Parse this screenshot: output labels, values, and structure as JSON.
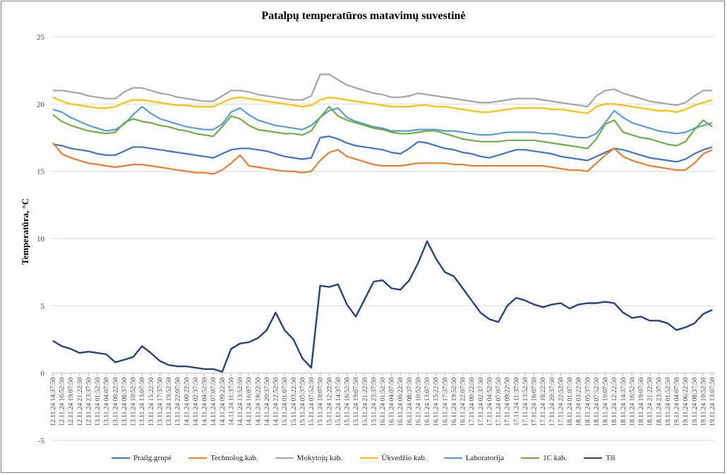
{
  "chart_data": {
    "type": "line",
    "title": "Patalpų temperatūros matavimų suvestinė",
    "ylabel": "Temperatūra, °C",
    "xlabel": "",
    "ylim": [
      -5,
      25
    ],
    "yticks": [
      -5,
      0,
      5,
      10,
      15,
      20,
      25
    ],
    "grid": true,
    "legend_position": "bottom",
    "x": [
      "12.11.24 14:37:50",
      "12.11.24 16:52:50",
      "12.11.24 19:07:50",
      "12.11.24 21:22:50",
      "12.11.24 23:37:50",
      "13.11.24 01:52:50",
      "13.11.24 04:07:50",
      "13.11.24 06:22:50",
      "13.11.24 08:37:50",
      "13.11.24 10:52:50",
      "13.11.24 13:07:50",
      "13.11.24 15:22:50",
      "13.11.24 17:37:50",
      "13.11.24 19:52:50",
      "13.11.24 22:07:50",
      "14.11.24 00:22:50",
      "14.11.24 02:37:50",
      "14.11.24 04:52:50",
      "14.11.24 07:07:50",
      "14.11.24 09:22:50",
      "14.11.24 11:37:50",
      "14.11.24 13:52:50",
      "14.11.24 16:07:50",
      "14.11.24 18:22:50",
      "14.11.24 20:37:50",
      "14.11.24 22:52:50",
      "15.11.24 01:07:50",
      "15.11.24 03:22:50",
      "15.11.24 05:37:50",
      "15.11.24 07:52:50",
      "15.11.24 10:07:50",
      "15.11.24 12:22:50",
      "15.11.24 14:37:50",
      "15.11.24 16:52:50",
      "15.11.24 19:07:50",
      "15.11.24 21:22:50",
      "15.11.24 23:37:50",
      "16.11.24 01:52:50",
      "16.11.24 04:07:50",
      "16.11.24 06:22:50",
      "16.11.24 08:37:50",
      "16.11.24 10:52:50",
      "16.11.24 13:07:50",
      "16.11.24 15:22:50",
      "16.11.24 17:37:50",
      "16.11.24 19:52:50",
      "16.11.24 22:07:50",
      "17.11.24 00:22:50",
      "17.11.24 02:37:50",
      "17.11.24 04:52:50",
      "17.11.24 07:07:50",
      "17.11.24 09:22:50",
      "17.11.24 11:37:50",
      "17.11.24 13:52:50",
      "17.11.24 16:07:50",
      "17.11.24 18:22:50",
      "17.11.24 20:37:50",
      "17.11.24 22:52:50",
      "18.11.24 01:07:50",
      "18.11.24 03:22:50",
      "18.11.24 05:37:50",
      "18.11.24 07:52:50",
      "18.11.24 10:07:50",
      "18.11.24 12:22:50",
      "18.11.24 14:37:50",
      "18.11.24 16:52:50",
      "18.11.24 19:07:50",
      "18.11.24 21:22:50",
      "18.11.24 23:37:50",
      "19.11.24 01:52:50",
      "19.11.24 04:07:50",
      "19.11.24 06:22:50",
      "19.11.24 08:37:50",
      "19.11.24 10:52:50",
      "19.11.24 13:07:50"
    ],
    "series": [
      {
        "name": "Prailg.grupė",
        "color": "#4472c4",
        "values": [
          17.0,
          16.9,
          16.7,
          16.6,
          16.5,
          16.3,
          16.2,
          16.2,
          16.5,
          16.8,
          16.8,
          16.7,
          16.6,
          16.5,
          16.4,
          16.3,
          16.2,
          16.1,
          16.0,
          16.3,
          16.6,
          16.7,
          16.7,
          16.6,
          16.5,
          16.3,
          16.1,
          16.0,
          15.9,
          16.0,
          17.5,
          17.6,
          17.4,
          17.1,
          16.9,
          16.8,
          16.7,
          16.6,
          16.4,
          16.3,
          16.7,
          17.2,
          17.1,
          16.9,
          16.7,
          16.6,
          16.4,
          16.3,
          16.1,
          16.0,
          16.2,
          16.4,
          16.6,
          16.6,
          16.5,
          16.4,
          16.3,
          16.1,
          16.0,
          15.9,
          15.8,
          16.1,
          16.4,
          16.7,
          16.6,
          16.4,
          16.2,
          16.0,
          15.9,
          15.8,
          15.7,
          15.9,
          16.3,
          16.6,
          16.8
        ]
      },
      {
        "name": "Technolog.kab.",
        "color": "#ed7d31",
        "values": [
          17.1,
          16.3,
          16.0,
          15.8,
          15.6,
          15.5,
          15.4,
          15.3,
          15.4,
          15.5,
          15.5,
          15.4,
          15.3,
          15.2,
          15.1,
          15.0,
          14.9,
          14.9,
          14.8,
          15.1,
          15.6,
          16.2,
          15.4,
          15.3,
          15.2,
          15.1,
          15.0,
          15.0,
          14.9,
          15.0,
          15.8,
          16.4,
          16.6,
          16.1,
          15.9,
          15.7,
          15.5,
          15.4,
          15.4,
          15.4,
          15.5,
          15.6,
          15.6,
          15.6,
          15.6,
          15.5,
          15.5,
          15.4,
          15.4,
          15.4,
          15.4,
          15.4,
          15.4,
          15.4,
          15.4,
          15.4,
          15.3,
          15.2,
          15.1,
          15.1,
          15.0,
          15.6,
          16.2,
          16.7,
          16.1,
          15.8,
          15.6,
          15.4,
          15.3,
          15.2,
          15.1,
          15.1,
          15.6,
          16.3,
          16.6
        ]
      },
      {
        "name": "Mokytojų kab.",
        "color": "#a5a5a5",
        "values": [
          21.0,
          21.0,
          20.9,
          20.8,
          20.6,
          20.5,
          20.4,
          20.4,
          20.9,
          21.2,
          21.2,
          21.0,
          20.8,
          20.7,
          20.5,
          20.4,
          20.3,
          20.2,
          20.2,
          20.6,
          21.0,
          21.0,
          20.9,
          20.7,
          20.6,
          20.5,
          20.4,
          20.3,
          20.3,
          20.6,
          22.2,
          22.2,
          21.8,
          21.4,
          21.2,
          21.0,
          20.8,
          20.7,
          20.5,
          20.5,
          20.6,
          20.8,
          20.7,
          20.6,
          20.5,
          20.4,
          20.3,
          20.2,
          20.1,
          20.1,
          20.2,
          20.3,
          20.4,
          20.4,
          20.4,
          20.3,
          20.2,
          20.1,
          20.0,
          19.9,
          19.8,
          20.6,
          21.0,
          21.1,
          20.8,
          20.6,
          20.4,
          20.2,
          20.1,
          20.0,
          19.9,
          20.1,
          20.6,
          21.0,
          21.0
        ]
      },
      {
        "name": "Ūkvedžio kab.",
        "color": "#ffc000",
        "values": [
          20.5,
          20.2,
          20.0,
          19.9,
          19.8,
          19.7,
          19.7,
          19.8,
          20.1,
          20.3,
          20.3,
          20.2,
          20.1,
          20.0,
          19.9,
          19.9,
          19.8,
          19.8,
          19.8,
          20.1,
          20.4,
          20.5,
          20.4,
          20.3,
          20.2,
          20.1,
          20.0,
          19.9,
          19.8,
          19.9,
          20.3,
          20.5,
          20.4,
          20.3,
          20.2,
          20.1,
          20.0,
          19.9,
          19.8,
          19.8,
          19.8,
          19.9,
          19.9,
          19.8,
          19.8,
          19.7,
          19.6,
          19.5,
          19.4,
          19.4,
          19.5,
          19.6,
          19.7,
          19.7,
          19.7,
          19.7,
          19.6,
          19.6,
          19.5,
          19.4,
          19.3,
          19.8,
          20.0,
          20.0,
          19.9,
          19.8,
          19.7,
          19.6,
          19.5,
          19.5,
          19.4,
          19.6,
          19.9,
          20.1,
          20.3
        ]
      },
      {
        "name": "Laboratorija",
        "color": "#5b9bd5",
        "values": [
          19.6,
          19.4,
          19.0,
          18.7,
          18.4,
          18.2,
          18.0,
          18.1,
          18.5,
          19.2,
          19.8,
          19.3,
          18.9,
          18.7,
          18.5,
          18.3,
          18.2,
          18.1,
          18.1,
          18.5,
          19.4,
          19.7,
          19.2,
          18.8,
          18.6,
          18.4,
          18.3,
          18.2,
          18.1,
          18.4,
          19.0,
          19.5,
          19.7,
          19.0,
          18.7,
          18.5,
          18.3,
          18.2,
          18.0,
          18.0,
          18.0,
          18.1,
          18.1,
          18.1,
          18.0,
          18.0,
          17.9,
          17.8,
          17.7,
          17.7,
          17.8,
          17.9,
          17.9,
          17.9,
          17.9,
          17.8,
          17.8,
          17.7,
          17.6,
          17.5,
          17.5,
          17.8,
          18.6,
          19.5,
          19.0,
          18.6,
          18.4,
          18.2,
          18.0,
          17.9,
          17.8,
          17.9,
          18.2,
          18.4,
          18.6
        ]
      },
      {
        "name": "1C kab.",
        "color": "#70ad47",
        "values": [
          19.2,
          18.7,
          18.4,
          18.2,
          18.0,
          17.9,
          17.8,
          17.9,
          18.6,
          18.9,
          18.7,
          18.6,
          18.4,
          18.3,
          18.1,
          18.0,
          17.8,
          17.7,
          17.6,
          18.3,
          19.1,
          18.9,
          18.4,
          18.1,
          18.0,
          17.9,
          17.8,
          17.8,
          17.7,
          18.0,
          19.0,
          19.8,
          19.1,
          18.8,
          18.6,
          18.4,
          18.2,
          18.1,
          17.9,
          17.8,
          17.8,
          17.9,
          18.0,
          18.0,
          17.8,
          17.6,
          17.4,
          17.3,
          17.2,
          17.2,
          17.2,
          17.3,
          17.3,
          17.3,
          17.3,
          17.2,
          17.1,
          17.0,
          16.9,
          16.8,
          16.7,
          17.4,
          18.5,
          18.8,
          17.9,
          17.7,
          17.5,
          17.4,
          17.2,
          17.0,
          16.9,
          17.2,
          18.1,
          18.8,
          18.3
        ]
      },
      {
        "name": "Tiš",
        "color": "#264478",
        "values": [
          2.4,
          2.0,
          1.8,
          1.5,
          1.6,
          1.5,
          1.4,
          0.8,
          1.0,
          1.2,
          2.0,
          1.5,
          0.9,
          0.6,
          0.5,
          0.5,
          0.4,
          0.3,
          0.3,
          0.1,
          1.8,
          2.2,
          2.3,
          2.6,
          3.2,
          4.5,
          3.2,
          2.5,
          1.1,
          0.4,
          6.5,
          6.4,
          6.6,
          5.1,
          4.2,
          5.5,
          6.8,
          6.9,
          6.3,
          6.2,
          6.9,
          8.2,
          9.8,
          8.5,
          7.5,
          7.2,
          6.3,
          5.4,
          4.5,
          4.0,
          3.8,
          5.0,
          5.6,
          5.4,
          5.1,
          4.9,
          5.1,
          5.2,
          4.8,
          5.1,
          5.2,
          5.2,
          5.3,
          5.2,
          4.5,
          4.1,
          4.2,
          3.9,
          3.9,
          3.7,
          3.2,
          3.4,
          3.7,
          4.4,
          4.7
        ]
      }
    ]
  }
}
